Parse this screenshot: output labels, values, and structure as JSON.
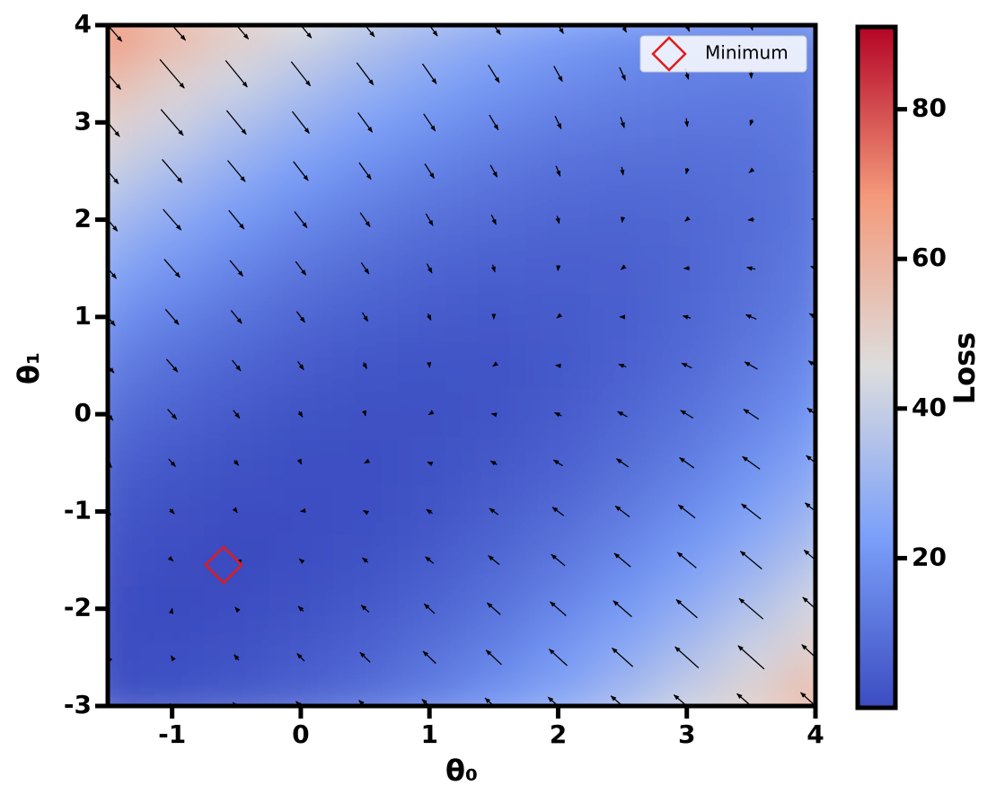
{
  "chart_data": {
    "type": "heatmap",
    "x": [
      -1.5,
      -1,
      -0.5,
      0,
      0.5,
      1,
      1.5,
      2,
      2.5,
      3,
      3.5,
      4
    ],
    "y": [
      -3,
      -2.5,
      -2,
      -1.5,
      -1,
      -0.5,
      0,
      0.5,
      1,
      1.5,
      2,
      2.5,
      3,
      3.5,
      4
    ],
    "z": [
      [
        1.3,
        2.3,
        4.1,
        6.8,
        10.4,
        14.9,
        20.3,
        26.4,
        33.5,
        41.5,
        50.4,
        60.1
      ],
      [
        0.5,
        0.8,
        1.9,
        3.8,
        6.7,
        10.5,
        15.1,
        20.6,
        26.9,
        34.2,
        42.3,
        51.3
      ],
      [
        0.6,
        0.1,
        0.5,
        1.8,
        3.9,
        6.9,
        10.8,
        15.6,
        21.3,
        27.7,
        35.1,
        43.4
      ],
      [
        1.5,
        0.3,
        0.0,
        0.6,
        2.0,
        4.2,
        7.4,
        11.5,
        16.4,
        22.2,
        28.8,
        36.3
      ],
      [
        3.4,
        1.4,
        0.4,
        0.2,
        0.9,
        2.5,
        4.9,
        8.2,
        12.4,
        17.5,
        23.4,
        30.2
      ],
      [
        6.1,
        3.5,
        1.6,
        0.7,
        0.7,
        1.6,
        3.3,
        5.8,
        9.3,
        13.6,
        18.9,
        25.0
      ],
      [
        9.7,
        6.3,
        3.8,
        2.1,
        1.4,
        1.5,
        2.5,
        4.4,
        7.0,
        10.7,
        15.2,
        20.6
      ],
      [
        14.1,
        10.0,
        6.8,
        4.5,
        2.9,
        2.3,
        2.6,
        3.7,
        5.8,
        8.6,
        12.4,
        17.0
      ],
      [
        19.4,
        14.6,
        10.7,
        7.6,
        5.4,
        4.0,
        3.5,
        4.0,
        5.3,
        7.5,
        10.4,
        14.4
      ],
      [
        25.7,
        20.1,
        15.4,
        11.6,
        8.7,
        6.6,
        5.4,
        5.1,
        5.7,
        7.1,
        9.5,
        12.6
      ],
      [
        32.8,
        26.5,
        21.0,
        16.5,
        12.8,
        10.1,
        8.2,
        7.1,
        6.9,
        7.7,
        9.3,
        11.8
      ],
      [
        40.7,
        33.7,
        27.6,
        22.2,
        17.9,
        14.4,
        11.8,
        10.0,
        9.1,
        9.1,
        10.0,
        11.7
      ],
      [
        49.5,
        41.8,
        34.9,
        29.0,
        23.8,
        19.6,
        16.2,
        13.8,
        12.2,
        11.4,
        11.5,
        12.6
      ],
      [
        59.2,
        50.7,
        43.2,
        36.5,
        30.7,
        25.6,
        21.6,
        18.4,
        16.1,
        14.6,
        14.0,
        14.3
      ],
      [
        69.8,
        60.6,
        52.3,
        44.9,
        38.3,
        32.7,
        27.8,
        23.9,
        20.8,
        18.7,
        17.4,
        16.9
      ]
    ],
    "xlim": [
      -1.5,
      4
    ],
    "ylim": [
      -3,
      4
    ],
    "xticks": [
      -1,
      0,
      1,
      2,
      3,
      4
    ],
    "yticks": [
      -3,
      -2,
      -1,
      0,
      1,
      2,
      3,
      4
    ],
    "xlabel": "θ₀",
    "ylabel": "θ₁",
    "colorbar": {
      "label": "Loss",
      "lim": [
        0,
        91
      ],
      "ticks": [
        20,
        40,
        60,
        80
      ]
    },
    "colormap": [
      "#3b4cc0",
      "#7b9ff9",
      "#dddddd",
      "#f49a7b",
      "#b40426"
    ],
    "quiver": true,
    "arrow_color": "#000000",
    "minimum": {
      "name": "Minimum",
      "x": -0.6,
      "y": -1.55,
      "color": "#e31a1c"
    },
    "legend": "upper right"
  }
}
